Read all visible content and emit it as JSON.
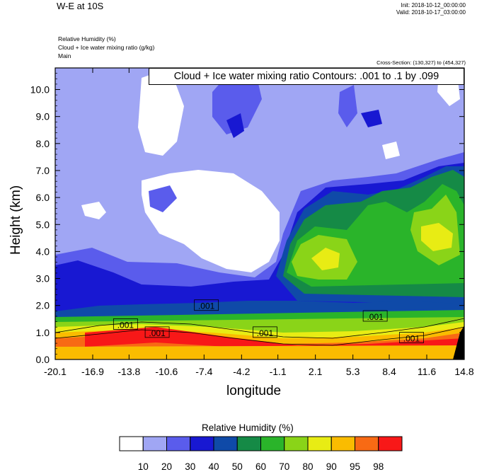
{
  "header": {
    "title": "W-E at 10S",
    "init": "Init: 2018-10-12_00:00:00",
    "valid": "Valid: 2018-10-17_03:00:00",
    "fields": [
      "Relative Humidity   (%)",
      "Cloud + Ice water mixing ratio   (g/kg)",
      "Main"
    ],
    "cross_section": "Cross-Section: (130,327) to (454,327)"
  },
  "chart_data": {
    "type": "heatmap",
    "contour_info": "Cloud + Ice water mixing ratio Contours: .001 to .1 by .099",
    "xlabel": "longitude",
    "ylabel": "Height (km)",
    "x_ticks": [
      "-20.1",
      "-16.9",
      "-13.8",
      "-10.6",
      "-7.4",
      "-4.2",
      "-1.1",
      "2.1",
      "5.3",
      "8.4",
      "11.6",
      "14.8"
    ],
    "y_ticks": [
      "0.0",
      "1.0",
      "2.0",
      "3.0",
      "4.0",
      "5.0",
      "6.0",
      "7.0",
      "8.0",
      "9.0",
      "10.0"
    ],
    "xlim": [
      -20.1,
      14.8
    ],
    "ylim": [
      0,
      10.8
    ],
    "contour_labels": [
      {
        "text": ".001",
        "x": -14.1,
        "y": 1.3
      },
      {
        "text": ".001",
        "x": -7.2,
        "y": 2.0
      },
      {
        "text": ".001",
        "x": -11.4,
        "y": 1.0
      },
      {
        "text": ".001",
        "x": -2.2,
        "y": 1.0
      },
      {
        "text": ".001",
        "x": 7.2,
        "y": 1.6
      },
      {
        "text": ".001",
        "x": 10.3,
        "y": 0.8
      }
    ],
    "colorbar": {
      "title": "Relative Humidity  (%)",
      "colors": [
        "#ffffff",
        "#a0a6f4",
        "#5a5cec",
        "#1818d2",
        "#0f4aa8",
        "#158a46",
        "#2ab42a",
        "#8ad418",
        "#e8ec14",
        "#fabc00",
        "#f86a14",
        "#f81818"
      ],
      "labels": [
        "10",
        "20",
        "30",
        "40",
        "50",
        "60",
        "70",
        "80",
        "90",
        "95",
        "98"
      ]
    }
  }
}
